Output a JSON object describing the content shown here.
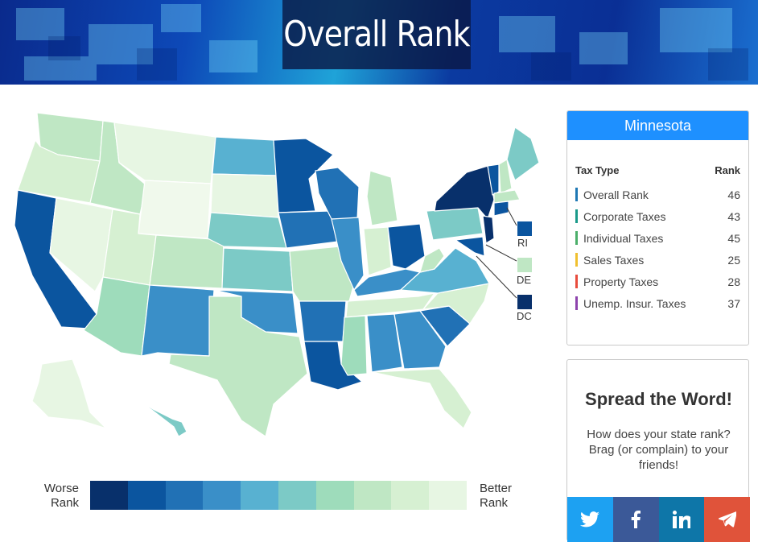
{
  "header": {
    "title": "Overall Rank"
  },
  "colors": {
    "scale": [
      "#08306b",
      "#0b559f",
      "#2171b5",
      "#3a8fc8",
      "#58b1d1",
      "#7ccac6",
      "#9edcbb",
      "#bfe7c4",
      "#d6f0d2",
      "#e7f6e3"
    ],
    "accent": "#1e90ff"
  },
  "map": {
    "small_states": [
      {
        "abbr": "RI",
        "level": 1
      },
      {
        "abbr": "DE",
        "level": 7
      },
      {
        "abbr": "DC",
        "level": 0
      }
    ]
  },
  "legend": {
    "worse": "Worse Rank",
    "better": "Better Rank"
  },
  "state_panel": {
    "state": "Minnesota",
    "col_type": "Tax Type",
    "col_rank": "Rank",
    "rows": [
      {
        "label": "Overall Rank",
        "rank": "46",
        "color": "#1f78b4"
      },
      {
        "label": "Corporate Taxes",
        "rank": "43",
        "color": "#1a9a8a"
      },
      {
        "label": "Individual Taxes",
        "rank": "45",
        "color": "#4caf6a"
      },
      {
        "label": "Sales Taxes",
        "rank": "25",
        "color": "#f0c030"
      },
      {
        "label": "Property Taxes",
        "rank": "28",
        "color": "#e84c3d"
      },
      {
        "label": "Unemp. Insur. Taxes",
        "rank": "37",
        "color": "#8e44ad"
      }
    ]
  },
  "spread": {
    "title": "Spread the Word!",
    "text": "How does your state rank? Brag (or complain) to your friends!",
    "share": [
      {
        "icon": "twitter-icon",
        "color": "#1da1f2"
      },
      {
        "icon": "facebook-icon",
        "color": "#3b5998"
      },
      {
        "icon": "linkedin-icon",
        "color": "#0e76a8"
      },
      {
        "icon": "telegram-icon",
        "color": "#e0533a"
      }
    ]
  }
}
